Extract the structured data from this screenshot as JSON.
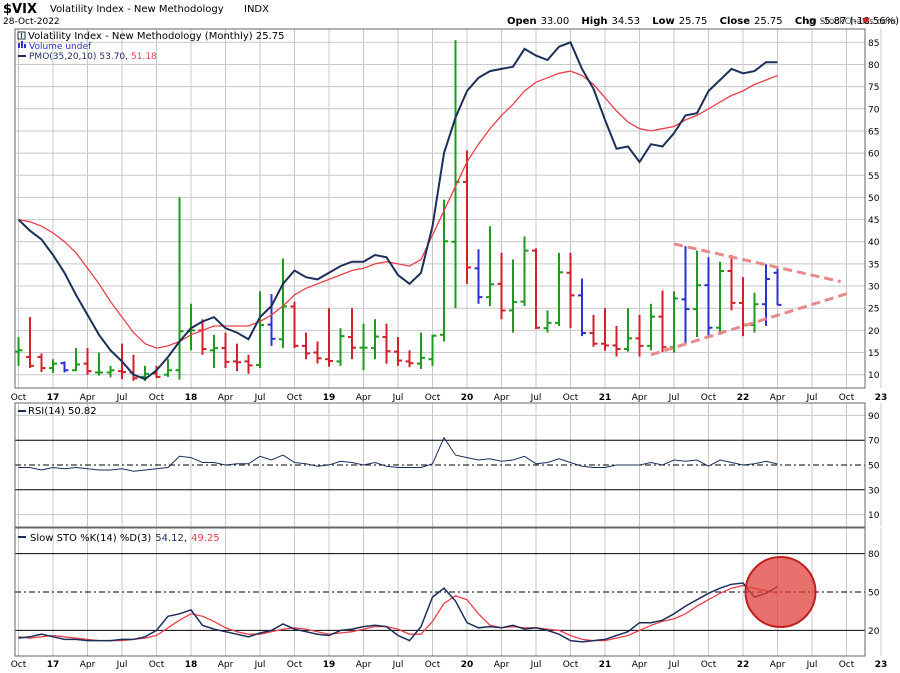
{
  "header": {
    "symbol": "$VIX",
    "name": "Volatility Index - New Methodology",
    "exchange": "INDX",
    "date": "28-Oct-2022",
    "watermark": "@ StockCharts.com",
    "ohlc": {
      "open_label": "Open",
      "open": "33.00",
      "high_label": "High",
      "high": "34.53",
      "low_label": "Low",
      "low": "25.75",
      "close_label": "Close",
      "close": "25.75",
      "chg_label": "Chg",
      "chg": "-5.87 (-18.56%)"
    }
  },
  "legends": {
    "price": "Volatility Index - New Methodology (Monthly) 25.75",
    "volume": "Volume undef",
    "pmo_name": "PMO(35,20,10)",
    "pmo_v1": "53.70",
    "pmo_v2": "51.18",
    "rsi": "RSI(14) 50.82",
    "sto_name": "Slow STO %K(14) %D(3)",
    "sto_v1": "54.12",
    "sto_v2": "49.25"
  },
  "colors": {
    "up": "#1e9a1e",
    "down": "#d4202a",
    "close_high": "#3030d0",
    "pmo": "#1c2f5a",
    "signal": "#e8404c",
    "triangle": "#e88a8a",
    "circle": "#e0403c",
    "rsi_fill": "#4a7ad0"
  },
  "x_axis": {
    "labels": [
      "Oct",
      "17",
      "Apr",
      "Jul",
      "Oct",
      "18",
      "Apr",
      "Jul",
      "Oct",
      "19",
      "Apr",
      "Jul",
      "Oct",
      "20",
      "Apr",
      "Jul",
      "Oct",
      "21",
      "Apr",
      "Jul",
      "Oct",
      "22",
      "Apr",
      "Jul",
      "Oct",
      "23",
      "Apr",
      "Jul"
    ],
    "bold": [
      "17",
      "18",
      "19",
      "20",
      "21",
      "22",
      "23"
    ]
  },
  "chart_data": [
    {
      "type": "ohlc",
      "title": "Volatility Index - New Methodology (Monthly)",
      "start": "2016-10",
      "yticks": [
        10,
        15,
        20,
        25,
        30,
        35,
        40,
        45,
        50,
        55,
        60,
        65,
        70,
        75,
        80,
        85
      ],
      "ylim": [
        7,
        88
      ],
      "bars": [
        [
          15.2,
          18.5,
          12.0,
          15.5
        ],
        [
          14.0,
          23.0,
          11.5,
          12.0
        ],
        [
          14.0,
          14.8,
          10.6,
          11.5
        ],
        [
          11.5,
          13.5,
          10.4,
          12.5
        ],
        [
          12.6,
          13.0,
          10.5,
          11.0
        ],
        [
          11.0,
          16.0,
          10.8,
          12.3
        ],
        [
          12.5,
          16.0,
          10.0,
          10.8
        ],
        [
          10.5,
          15.0,
          9.8,
          10.5
        ],
        [
          10.5,
          12.0,
          9.4,
          11.0
        ],
        [
          10.8,
          17.0,
          9.0,
          10.6
        ],
        [
          10.5,
          14.5,
          8.6,
          9.2
        ],
        [
          9.5,
          12.0,
          8.6,
          10.2
        ],
        [
          10.3,
          12.0,
          9.2,
          9.5
        ],
        [
          10.0,
          13.5,
          9.5,
          11.0
        ],
        [
          11.0,
          50.0,
          8.9,
          19.8
        ],
        [
          19.8,
          26.0,
          15.5,
          20.0
        ],
        [
          20.0,
          22.5,
          14.5,
          15.8
        ],
        [
          15.5,
          19.0,
          11.5,
          16.0
        ],
        [
          16.0,
          19.5,
          11.5,
          12.9
        ],
        [
          13.0,
          17.0,
          10.8,
          12.8
        ],
        [
          13.0,
          14.5,
          10.2,
          12.1
        ],
        [
          12.2,
          28.8,
          11.5,
          21.2
        ],
        [
          21.3,
          28.2,
          16.5,
          18.1
        ],
        [
          18.0,
          36.2,
          16.0,
          25.4
        ],
        [
          25.4,
          26.5,
          16.0,
          16.5
        ],
        [
          16.5,
          19.5,
          13.5,
          14.8
        ],
        [
          15.0,
          17.5,
          12.5,
          13.7
        ],
        [
          13.5,
          25.0,
          11.8,
          13.1
        ],
        [
          13.0,
          20.5,
          12.0,
          18.7
        ],
        [
          18.5,
          25.0,
          13.5,
          16.1
        ],
        [
          16.1,
          21.5,
          11.0,
          16.1
        ],
        [
          16.0,
          22.5,
          13.5,
          18.6
        ],
        [
          18.5,
          21.5,
          12.5,
          15.3
        ],
        [
          15.2,
          18.5,
          12.0,
          13.2
        ],
        [
          13.0,
          15.5,
          11.7,
          12.6
        ],
        [
          12.5,
          19.5,
          11.3,
          13.8
        ],
        [
          13.5,
          19.0,
          12.0,
          18.8
        ],
        [
          19.0,
          49.5,
          17.5,
          40.1
        ],
        [
          40.0,
          85.5,
          25.0,
          53.5
        ],
        [
          53.5,
          60.6,
          30.5,
          34.2
        ],
        [
          34.0,
          38.3,
          26.0,
          27.5
        ],
        [
          27.5,
          43.5,
          25.5,
          30.4
        ],
        [
          30.5,
          37.5,
          22.5,
          24.5
        ],
        [
          24.5,
          36.0,
          19.5,
          26.4
        ],
        [
          26.5,
          41.2,
          25.5,
          38.0
        ],
        [
          38.0,
          38.5,
          20.3,
          20.6
        ],
        [
          20.5,
          24.5,
          19.5,
          21.7
        ],
        [
          21.7,
          37.5,
          21.0,
          33.1
        ],
        [
          33.0,
          37.5,
          20.5,
          27.9
        ],
        [
          27.9,
          31.7,
          18.7,
          19.4
        ],
        [
          19.4,
          23.5,
          16.3,
          17.0
        ],
        [
          17.0,
          25.0,
          15.4,
          16.6
        ],
        [
          16.6,
          21.0,
          14.1,
          15.8
        ],
        [
          15.8,
          25.0,
          15.2,
          18.2
        ],
        [
          18.2,
          23.5,
          14.1,
          16.5
        ],
        [
          16.5,
          26.0,
          15.5,
          23.1
        ],
        [
          23.1,
          29.0,
          15.1,
          16.2
        ],
        [
          16.2,
          28.8,
          15.0,
          27.2
        ],
        [
          27.0,
          39.0,
          16.7,
          24.8
        ],
        [
          24.8,
          38.0,
          18.5,
          30.2
        ],
        [
          30.2,
          36.5,
          18.6,
          20.6
        ],
        [
          20.6,
          35.5,
          19.0,
          33.4
        ],
        [
          33.4,
          37.0,
          24.5,
          26.2
        ],
        [
          26.2,
          32.0,
          18.7,
          21.3
        ],
        [
          21.2,
          28.5,
          19.5,
          25.9
        ],
        [
          25.9,
          34.9,
          21.0,
          31.6
        ],
        [
          33.0,
          34.5,
          25.75,
          25.75
        ]
      ]
    },
    {
      "type": "line",
      "title": "PMO(35,20,10)",
      "series": [
        {
          "name": "PMO",
          "values": [
            45.0,
            42.5,
            40.5,
            37.0,
            33.0,
            28.0,
            23.5,
            19.0,
            15.5,
            13.0,
            10.0,
            9.0,
            11.0,
            14.0,
            17.5,
            20.5,
            22.0,
            23.0,
            20.5,
            19.5,
            18.0,
            23.0,
            25.5,
            30.5,
            33.5,
            32.0,
            31.5,
            33.0,
            34.5,
            35.5,
            35.5,
            37.0,
            36.5,
            32.5,
            30.5,
            33.0,
            43.5,
            60.0,
            68.0,
            74.0,
            77.0,
            78.5,
            79.0,
            79.5,
            83.5,
            82.0,
            81.0,
            84.0,
            85.0,
            79.0,
            74.5,
            67.5,
            61.0,
            61.5,
            58.0,
            62.0,
            61.5,
            64.5,
            68.5,
            69.0,
            74.0,
            76.5,
            79.0,
            78.0,
            78.5,
            80.5,
            80.5
          ]
        },
        {
          "name": "Signal",
          "values": [
            45.0,
            44.5,
            43.5,
            42.0,
            40.0,
            37.5,
            34.0,
            30.5,
            26.5,
            23.0,
            19.5,
            17.0,
            16.0,
            16.5,
            17.5,
            19.0,
            20.0,
            21.0,
            21.0,
            21.0,
            21.0,
            22.0,
            23.5,
            25.5,
            28.0,
            29.5,
            30.5,
            31.5,
            32.5,
            33.5,
            34.0,
            35.0,
            35.5,
            35.0,
            34.5,
            36.0,
            41.5,
            47.0,
            52.5,
            58.0,
            62.0,
            65.5,
            68.5,
            71.0,
            74.0,
            76.0,
            77.0,
            78.0,
            78.5,
            77.5,
            75.5,
            72.5,
            69.5,
            67.0,
            65.5,
            65.0,
            65.5,
            66.0,
            67.5,
            68.5,
            70.0,
            71.5,
            73.0,
            74.0,
            75.5,
            76.5,
            77.5
          ]
        }
      ]
    },
    {
      "type": "line",
      "title": "RSI(14)",
      "yticks": [
        10,
        30,
        50,
        70,
        90
      ],
      "ylim": [
        0,
        100
      ],
      "series": [
        {
          "name": "RSI",
          "values": [
            48,
            48,
            46,
            48,
            47,
            48,
            47,
            46,
            46,
            47,
            45,
            46,
            47,
            48,
            57,
            56,
            52,
            52,
            50,
            51,
            51,
            57,
            54,
            58,
            52,
            51,
            49,
            50,
            53,
            52,
            50,
            52,
            49,
            48,
            48,
            48,
            51,
            72,
            58,
            56,
            54,
            55,
            53,
            54,
            57,
            51,
            52,
            55,
            52,
            49,
            48,
            48,
            50,
            50,
            50,
            52,
            50,
            54,
            53,
            54,
            49,
            54,
            52,
            50,
            51,
            53,
            50.82
          ]
        }
      ]
    },
    {
      "type": "line",
      "title": "Slow STO %K(14) %D(3)",
      "yticks": [
        20,
        50,
        80
      ],
      "ylim": [
        0,
        100
      ],
      "series": [
        {
          "name": "%K",
          "values": [
            14,
            15,
            17,
            15,
            13,
            13,
            12,
            12,
            12,
            13,
            13,
            15,
            20,
            31,
            33,
            36,
            24,
            21,
            19,
            17,
            15,
            18,
            20,
            25,
            21,
            19,
            17,
            16,
            20,
            21,
            23,
            24,
            23,
            16,
            12,
            23,
            46,
            53,
            43,
            26,
            22,
            23,
            22,
            24,
            21,
            22,
            20,
            17,
            12,
            11,
            12,
            13,
            16,
            19,
            26,
            26,
            28,
            33,
            39,
            44,
            49,
            53,
            56,
            57,
            46,
            49,
            54.12
          ]
        },
        {
          "name": "%D",
          "values": [
            15,
            14,
            15,
            16,
            15,
            14,
            13,
            12,
            12,
            12,
            13,
            14,
            16,
            22,
            28,
            33,
            31,
            27,
            22,
            19,
            17,
            17,
            19,
            21,
            22,
            21,
            19,
            17,
            18,
            19,
            21,
            23,
            23,
            21,
            17,
            17,
            27,
            41,
            47,
            44,
            33,
            24,
            22,
            23,
            22,
            22,
            21,
            20,
            16,
            13,
            12,
            12,
            14,
            16,
            20,
            24,
            27,
            29,
            33,
            39,
            44,
            49,
            53,
            55,
            53,
            51,
            49.25
          ]
        }
      ]
    }
  ]
}
